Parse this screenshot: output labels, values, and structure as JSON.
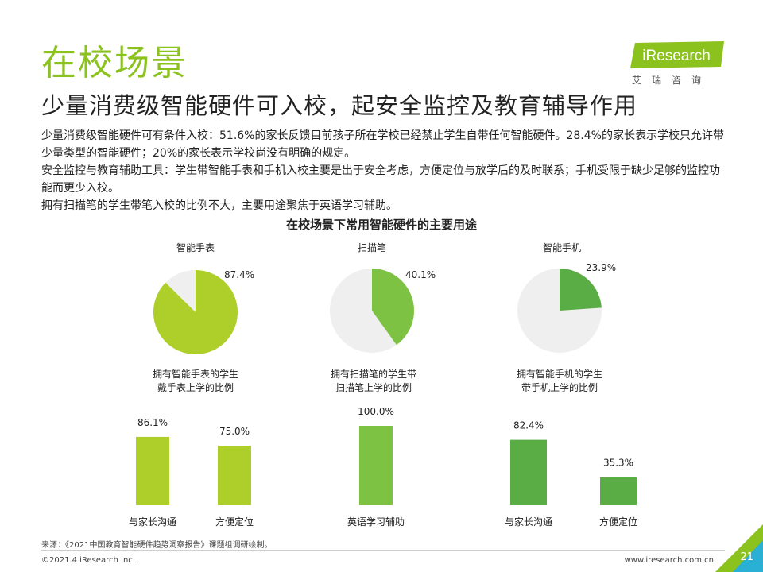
{
  "header": {
    "title": "在校场景",
    "subtitle": "少量消费级智能硬件可入校，起安全监控及教育辅导作用",
    "logo_text": "iResearch",
    "logo_sub": "艾瑞咨询"
  },
  "body": {
    "p1": "少量消费级智能硬件可有条件入校：51.6%的家长反馈目前孩子所在学校已经禁止学生自带任何智能硬件。28.4%的家长表示学校只允许带少量类型的智能硬件；20%的家长表示学校尚没有明确的规定。",
    "p2": "安全监控与教育辅助工具：学生带智能手表和手机入校主要是出于安全考虑，方便定位与放学后的及时联系；手机受限于缺少足够的监控功能而更少入校。",
    "p3": "拥有扫描笔的学生带笔入校的比例不大，主要用途聚焦于英语学习辅助。"
  },
  "chart_title": "在校场景下常用智能硬件的主要用途",
  "colors": {
    "title_green": "#8cc21e",
    "watch_green": "#aecf2a",
    "pen_green": "#7dc242",
    "phone_green": "#5aac44",
    "pie_rest": "#efefef"
  },
  "chart_data": [
    {
      "type": "pie",
      "title": "智能手表",
      "value": 87.4,
      "value_label": "87.4%",
      "caption": [
        "拥有智能手表的学生",
        "戴手表上学的比例"
      ],
      "color": "#aecf2a"
    },
    {
      "type": "pie",
      "title": "扫描笔",
      "value": 40.1,
      "value_label": "40.1%",
      "caption": [
        "拥有扫描笔的学生带",
        "扫描笔上学的比例"
      ],
      "color": "#7dc242"
    },
    {
      "type": "pie",
      "title": "智能手机",
      "value": 23.9,
      "value_label": "23.9%",
      "caption": [
        "拥有智能手机的学生",
        "带手机上学的比例"
      ],
      "color": "#5aac44"
    },
    {
      "type": "bar",
      "categories": [
        "与家长沟通",
        "方便定位"
      ],
      "values": [
        86.1,
        75.0
      ],
      "value_labels": [
        "86.1%",
        "75.0%"
      ],
      "ylim": [
        0,
        100
      ],
      "color": "#aecf2a"
    },
    {
      "type": "bar",
      "categories": [
        "英语学习辅助"
      ],
      "values": [
        100.0
      ],
      "value_labels": [
        "100.0%"
      ],
      "ylim": [
        0,
        100
      ],
      "color": "#7dc242"
    },
    {
      "type": "bar",
      "categories": [
        "与家长沟通",
        "方便定位"
      ],
      "values": [
        82.4,
        35.3
      ],
      "value_labels": [
        "82.4%",
        "35.3%"
      ],
      "ylim": [
        0,
        100
      ],
      "color": "#5aac44"
    }
  ],
  "footer": {
    "source": "来源：《2021中国教育智能硬件趋势洞察报告》课题组调研绘制。",
    "copyright": "©2021.4 iResearch Inc.",
    "url": "www.iresearch.com.cn",
    "page": "21"
  }
}
